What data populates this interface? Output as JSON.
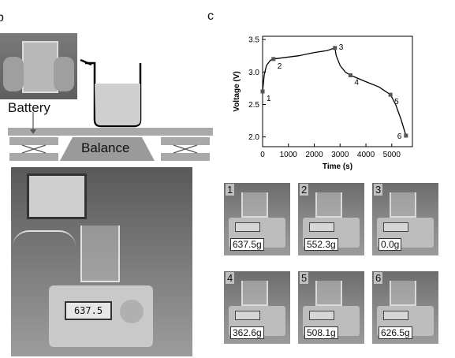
{
  "panel_b": {
    "letter": "b",
    "battery_label": "Battery",
    "balance_label": "Balance",
    "photo_display": "637.5"
  },
  "panel_c": {
    "letter": "c"
  },
  "chart_data": {
    "type": "line",
    "xlabel": "Time (s)",
    "ylabel": "Voltage (V)",
    "xlim": [
      0,
      5800
    ],
    "ylim": [
      1.85,
      3.55
    ],
    "xticks": [
      0,
      1000,
      2000,
      3000,
      4000,
      5000
    ],
    "yticks": [
      2.0,
      2.5,
      3.0,
      3.5
    ],
    "curve": [
      {
        "x": 0,
        "y": 2.7
      },
      {
        "x": 60,
        "y": 2.95
      },
      {
        "x": 150,
        "y": 3.1
      },
      {
        "x": 300,
        "y": 3.18
      },
      {
        "x": 420,
        "y": 3.2
      },
      {
        "x": 800,
        "y": 3.22
      },
      {
        "x": 1400,
        "y": 3.25
      },
      {
        "x": 2000,
        "y": 3.3
      },
      {
        "x": 2500,
        "y": 3.33
      },
      {
        "x": 2800,
        "y": 3.37
      },
      {
        "x": 2850,
        "y": 3.25
      },
      {
        "x": 3000,
        "y": 3.1
      },
      {
        "x": 3200,
        "y": 3.0
      },
      {
        "x": 3400,
        "y": 2.95
      },
      {
        "x": 4000,
        "y": 2.85
      },
      {
        "x": 4500,
        "y": 2.77
      },
      {
        "x": 4950,
        "y": 2.65
      },
      {
        "x": 5150,
        "y": 2.5
      },
      {
        "x": 5350,
        "y": 2.28
      },
      {
        "x": 5550,
        "y": 2.02
      }
    ],
    "points": [
      {
        "label": "1",
        "x": 0,
        "y": 2.7
      },
      {
        "label": "2",
        "x": 420,
        "y": 3.2
      },
      {
        "label": "3",
        "x": 2800,
        "y": 3.37
      },
      {
        "label": "4",
        "x": 3400,
        "y": 2.95
      },
      {
        "label": "5",
        "x": 4950,
        "y": 2.65
      },
      {
        "label": "6",
        "x": 5550,
        "y": 2.02
      }
    ]
  },
  "thumbnails": [
    {
      "num": "1",
      "mass": "637.5g"
    },
    {
      "num": "2",
      "mass": "552.3g"
    },
    {
      "num": "3",
      "mass": "0.0g"
    },
    {
      "num": "4",
      "mass": "362.6g"
    },
    {
      "num": "5",
      "mass": "508.1g"
    },
    {
      "num": "6",
      "mass": "626.5g"
    }
  ]
}
